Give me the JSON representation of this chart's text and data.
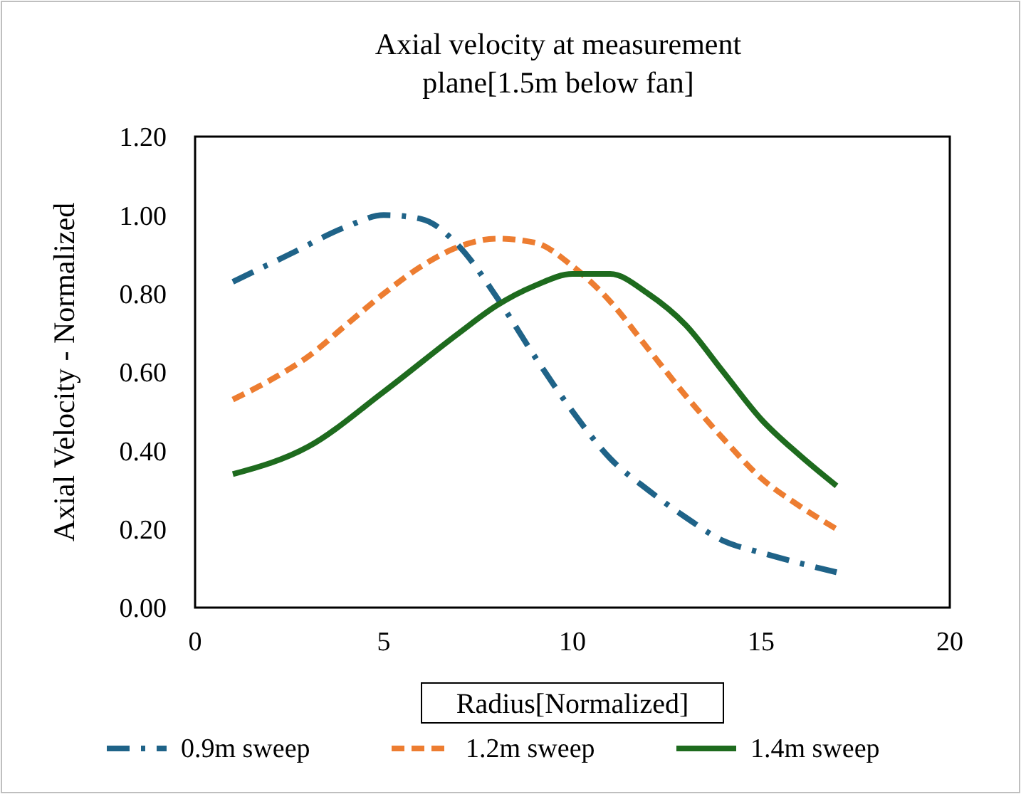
{
  "chart_data": {
    "type": "line",
    "title": "Axial velocity at measurement plane[1.5m below fan]",
    "xlabel": "Radius[Normalized]",
    "ylabel": "Axial Velocity - Normalized",
    "xlim": [
      0,
      20
    ],
    "xticks": [
      0,
      5,
      10,
      15,
      20
    ],
    "ylim": [
      0,
      1.2
    ],
    "yticks": [
      {
        "value": 0,
        "label": "0.00"
      },
      {
        "value": 0.2,
        "label": "0.20"
      },
      {
        "value": 0.4,
        "label": "0.40"
      },
      {
        "value": 0.6,
        "label": "0.60"
      },
      {
        "value": 0.8,
        "label": "0.80"
      },
      {
        "value": 1,
        "label": "1.00"
      },
      {
        "value": 1.2,
        "label": "1.20"
      }
    ],
    "grid": false,
    "legend": "bottom",
    "marker": "none",
    "series": [
      {
        "name": "0.9m sweep",
        "color": "#1f6388",
        "line_style": "dashdot",
        "x": [
          1,
          2.5,
          4,
          5,
          6,
          7,
          8,
          9,
          10,
          11,
          12,
          13,
          14,
          15,
          17
        ],
        "values": [
          0.83,
          0.9,
          0.97,
          1.0,
          0.99,
          0.92,
          0.79,
          0.64,
          0.5,
          0.38,
          0.3,
          0.23,
          0.17,
          0.14,
          0.09
        ]
      },
      {
        "name": "1.2m sweep",
        "color": "#ed7d31",
        "line_style": "dashed",
        "x": [
          1,
          2,
          3,
          4,
          5,
          6,
          7,
          8,
          9,
          10,
          11,
          12,
          13,
          14,
          15,
          16,
          17
        ],
        "values": [
          0.53,
          0.58,
          0.64,
          0.72,
          0.8,
          0.87,
          0.92,
          0.94,
          0.93,
          0.87,
          0.78,
          0.66,
          0.54,
          0.43,
          0.33,
          0.26,
          0.2
        ]
      },
      {
        "name": "1.4m sweep",
        "color": "#1e6b1e",
        "line_style": "solid",
        "x": [
          1,
          3,
          5,
          7,
          8,
          9,
          10,
          11,
          12,
          13,
          14,
          15,
          16,
          17
        ],
        "values": [
          0.34,
          0.41,
          0.55,
          0.7,
          0.77,
          0.82,
          0.85,
          0.85,
          0.8,
          0.72,
          0.6,
          0.48,
          0.39,
          0.31
        ]
      }
    ]
  }
}
